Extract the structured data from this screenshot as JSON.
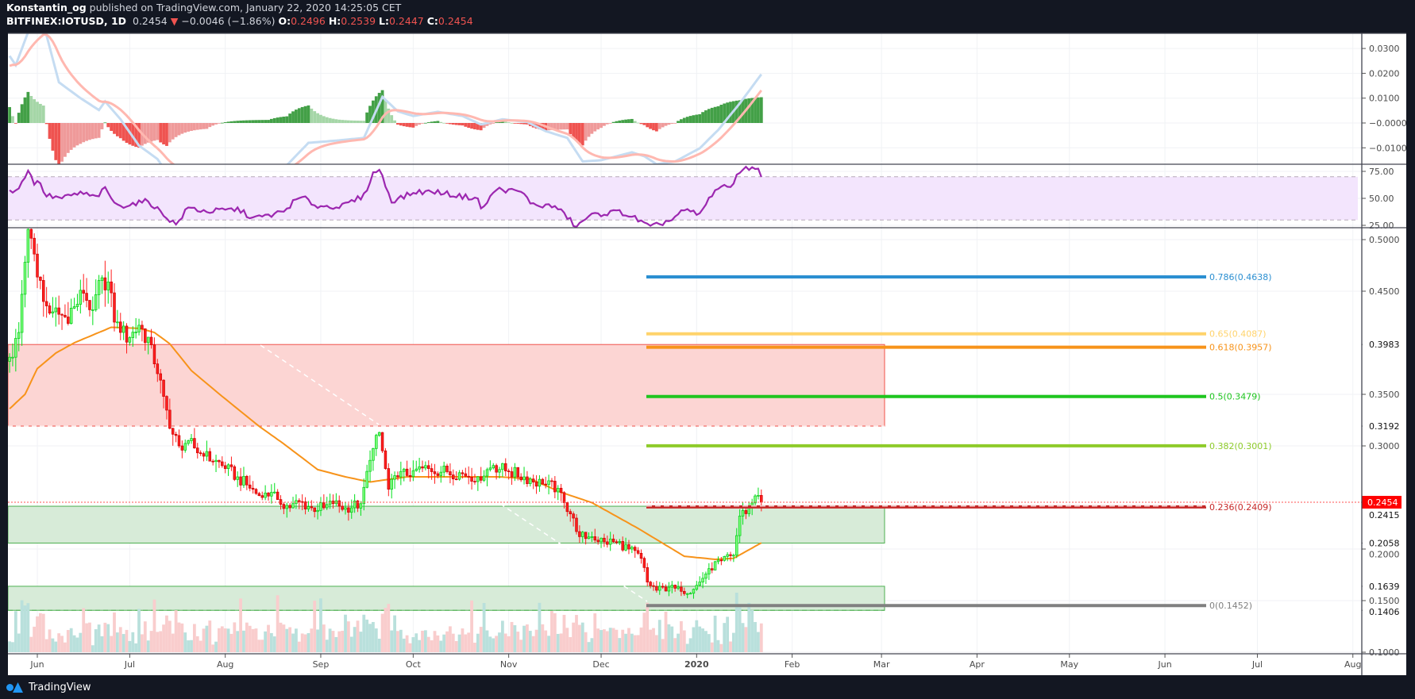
{
  "header": {
    "author": "Konstantin_og",
    "published": "published on TradingView.com, January 22, 2020 14:25:05 CET",
    "symbol": "BITFINEX:IOTUSD, 1D",
    "last": "0.2454",
    "change": "−0.0046 (−1.86%)",
    "o_label": "O:",
    "o": "0.2496",
    "h_label": "H:",
    "h": "0.2539",
    "l_label": "L:",
    "l": "0.2447",
    "c_label": "C:",
    "c": "0.2454"
  },
  "footer": {
    "brand": "TradingView"
  },
  "colors": {
    "up": "#00e01a",
    "down": "#ff1f1f",
    "ma": "#f7931a",
    "rsi": "#9c27b0",
    "macd": "#c5dcf2",
    "signal": "#ffb8b0",
    "price_badge": "#ff0000"
  },
  "chart_data": {
    "type": "candlestick",
    "x_unit": "days since 2019-06-01",
    "time_labels": [
      {
        "day": 0,
        "label": "Jun"
      },
      {
        "day": 30,
        "label": "Jul"
      },
      {
        "day": 61,
        "label": "Aug"
      },
      {
        "day": 92,
        "label": "Sep"
      },
      {
        "day": 122,
        "label": "Oct"
      },
      {
        "day": 153,
        "label": "Nov"
      },
      {
        "day": 183,
        "label": "Dec"
      },
      {
        "day": 214,
        "label": "2020",
        "bold": true
      },
      {
        "day": 245,
        "label": "Feb"
      },
      {
        "day": 274,
        "label": "Mar"
      },
      {
        "day": 305,
        "label": "Apr"
      },
      {
        "day": 335,
        "label": "May"
      },
      {
        "day": 366,
        "label": "Jun"
      },
      {
        "day": 396,
        "label": "Jul"
      },
      {
        "day": 427,
        "label": "Aug"
      }
    ],
    "price_axis": {
      "ylim": [
        0.1,
        0.5
      ],
      "ticks": [
        "0.5000",
        "0.4500",
        "0.3500",
        "0.3000",
        "0.2000",
        "0.1500",
        "0.1000"
      ],
      "marked": [
        "0.3983",
        "0.3192",
        "0.2415",
        "0.2058",
        "0.1639",
        "0.1406"
      ],
      "current": "0.2454"
    },
    "close_anchors": [
      [
        -9,
        0.386
      ],
      [
        -8,
        0.386
      ],
      [
        -6,
        0.41
      ],
      [
        -4,
        0.478
      ],
      [
        -3,
        0.51
      ],
      [
        -1,
        0.486
      ],
      [
        2,
        0.44
      ],
      [
        5,
        0.43
      ],
      [
        9,
        0.425
      ],
      [
        12,
        0.435
      ],
      [
        15,
        0.448
      ],
      [
        18,
        0.432
      ],
      [
        21,
        0.463
      ],
      [
        23,
        0.459
      ],
      [
        25,
        0.42
      ],
      [
        27,
        0.41
      ],
      [
        30,
        0.405
      ],
      [
        33,
        0.417
      ],
      [
        37,
        0.398
      ],
      [
        39,
        0.37
      ],
      [
        41,
        0.348
      ],
      [
        43,
        0.317
      ],
      [
        46,
        0.3
      ],
      [
        49,
        0.305
      ],
      [
        51,
        0.298
      ],
      [
        54,
        0.29
      ],
      [
        58,
        0.286
      ],
      [
        61,
        0.278
      ],
      [
        65,
        0.27
      ],
      [
        69,
        0.259
      ],
      [
        73,
        0.25
      ],
      [
        76,
        0.255
      ],
      [
        78,
        0.248
      ],
      [
        82,
        0.24
      ],
      [
        85,
        0.246
      ],
      [
        89,
        0.24
      ],
      [
        93,
        0.24
      ],
      [
        96,
        0.244
      ],
      [
        100,
        0.24
      ],
      [
        105,
        0.244
      ],
      [
        108,
        0.286
      ],
      [
        111,
        0.313
      ],
      [
        114,
        0.258
      ],
      [
        117,
        0.27
      ],
      [
        122,
        0.276
      ],
      [
        127,
        0.278
      ],
      [
        133,
        0.275
      ],
      [
        138,
        0.273
      ],
      [
        143,
        0.27
      ],
      [
        148,
        0.281
      ],
      [
        153,
        0.275
      ],
      [
        158,
        0.27
      ],
      [
        164,
        0.263
      ],
      [
        169,
        0.259
      ],
      [
        171,
        0.245
      ],
      [
        174,
        0.23
      ],
      [
        176,
        0.212
      ],
      [
        180,
        0.212
      ],
      [
        184,
        0.207
      ],
      [
        188,
        0.207
      ],
      [
        192,
        0.2
      ],
      [
        196,
        0.191
      ],
      [
        198,
        0.168
      ],
      [
        201,
        0.16
      ],
      [
        205,
        0.163
      ],
      [
        209,
        0.159
      ],
      [
        213,
        0.161
      ],
      [
        215,
        0.168
      ],
      [
        218,
        0.181
      ],
      [
        222,
        0.189
      ],
      [
        226,
        0.194
      ],
      [
        228,
        0.232
      ],
      [
        231,
        0.24
      ],
      [
        233,
        0.2515
      ],
      [
        235,
        0.2454
      ]
    ],
    "ma_anchors": [
      [
        -9,
        0.336
      ],
      [
        -4,
        0.35
      ],
      [
        0,
        0.375
      ],
      [
        6,
        0.39
      ],
      [
        12,
        0.4
      ],
      [
        24,
        0.415
      ],
      [
        33,
        0.414
      ],
      [
        38,
        0.41
      ],
      [
        43,
        0.399
      ],
      [
        50,
        0.373
      ],
      [
        60,
        0.348
      ],
      [
        72,
        0.319
      ],
      [
        80,
        0.302
      ],
      [
        91,
        0.277
      ],
      [
        100,
        0.27
      ],
      [
        108,
        0.265
      ],
      [
        120,
        0.27
      ],
      [
        150,
        0.27
      ],
      [
        160,
        0.268
      ],
      [
        170,
        0.255
      ],
      [
        180,
        0.245
      ],
      [
        195,
        0.22
      ],
      [
        210,
        0.193
      ],
      [
        220,
        0.19
      ],
      [
        226,
        0.191
      ],
      [
        235,
        0.206
      ]
    ],
    "macd": {
      "ticks": [
        "0.0300",
        "0.0200",
        "0.0100",
        "−0.0000",
        "−0.0100"
      ],
      "line_anchors": [
        [
          -9,
          0.027
        ],
        [
          -7,
          0.0233
        ],
        [
          -3,
          0.0366
        ],
        [
          2,
          0.04
        ],
        [
          7,
          0.0164
        ],
        [
          14,
          0.01
        ],
        [
          20,
          0.0052
        ],
        [
          22,
          0.0087
        ],
        [
          27,
          0.0015
        ],
        [
          33,
          -0.0091
        ],
        [
          39,
          -0.0145
        ],
        [
          42,
          -0.02
        ],
        [
          55,
          -0.024
        ],
        [
          75,
          -0.02
        ],
        [
          81,
          -0.017
        ],
        [
          88,
          -0.008
        ],
        [
          98,
          -0.007
        ],
        [
          106,
          -0.006
        ],
        [
          112,
          0.0105
        ],
        [
          117,
          0.0047
        ],
        [
          122,
          0.0028
        ],
        [
          130,
          0.0045
        ],
        [
          138,
          0.0028
        ],
        [
          144,
          -0.0006
        ],
        [
          151,
          0.0015
        ],
        [
          159,
          0.0004
        ],
        [
          165,
          -0.0033
        ],
        [
          172,
          -0.006
        ],
        [
          177,
          -0.0155
        ],
        [
          183,
          -0.015
        ],
        [
          193,
          -0.0118
        ],
        [
          197,
          -0.0134
        ],
        [
          201,
          -0.0166
        ],
        [
          207,
          -0.0155
        ],
        [
          215,
          -0.0102
        ],
        [
          221,
          -0.0028
        ],
        [
          228,
          0.0079
        ],
        [
          235,
          0.0196
        ]
      ]
    },
    "rsi": {
      "ticks": [
        "75.00",
        "50.00",
        "25.00"
      ],
      "bands": [
        30,
        70
      ],
      "anchors": [
        [
          -10,
          57.8
        ],
        [
          -7,
          56
        ],
        [
          -3,
          75.7
        ],
        [
          -1,
          64.7
        ],
        [
          0,
          67
        ],
        [
          3,
          52.5
        ],
        [
          8,
          50
        ],
        [
          14,
          55
        ],
        [
          19,
          51
        ],
        [
          22,
          58.6
        ],
        [
          26,
          42.6
        ],
        [
          31,
          45
        ],
        [
          36,
          47.5
        ],
        [
          41,
          35
        ],
        [
          45,
          25.5
        ],
        [
          49,
          41.4
        ],
        [
          55,
          37.7
        ],
        [
          65,
          40
        ],
        [
          70,
          31.6
        ],
        [
          75,
          34
        ],
        [
          80,
          37.7
        ],
        [
          83,
          46.3
        ],
        [
          86,
          51
        ],
        [
          91,
          42.6
        ],
        [
          99,
          42.6
        ],
        [
          106,
          52.5
        ],
        [
          109,
          73
        ],
        [
          111,
          77
        ],
        [
          115,
          47.5
        ],
        [
          123,
          56
        ],
        [
          130,
          56
        ],
        [
          136,
          52.5
        ],
        [
          143,
          50
        ],
        [
          144,
          39
        ],
        [
          149,
          58.6
        ],
        [
          157,
          56
        ],
        [
          161,
          43.9
        ],
        [
          168,
          42.6
        ],
        [
          172,
          32.9
        ],
        [
          175,
          23
        ],
        [
          178,
          31.6
        ],
        [
          181,
          35
        ],
        [
          189,
          37.7
        ],
        [
          194,
          31.6
        ],
        [
          199,
          23
        ],
        [
          206,
          30.4
        ],
        [
          210,
          39
        ],
        [
          215,
          35
        ],
        [
          220,
          58.6
        ],
        [
          225,
          61
        ],
        [
          228,
          75.7
        ],
        [
          233,
          79.4
        ],
        [
          235,
          72
        ]
      ]
    },
    "zones": [
      {
        "name": "resistance-zone",
        "top": 0.3983,
        "bottom": 0.3192,
        "fill": "#fcd5d3",
        "stroke": "#f0524a"
      },
      {
        "name": "support-zone",
        "top": 0.2415,
        "bottom": 0.2058,
        "fill": "#d7ebd8",
        "stroke": "#4caf50"
      },
      {
        "name": "lower-support-zone",
        "top": 0.1639,
        "bottom": 0.1406,
        "fill": "#d7ebd8",
        "stroke": "#4caf50"
      }
    ],
    "fib_levels": [
      {
        "level": "0.786",
        "price": "0.4638",
        "color": "#2b8fd1"
      },
      {
        "level": "0.65",
        "price": "0.4087",
        "color": "#ffd36b"
      },
      {
        "level": "0.618",
        "price": "0.3957",
        "color": "#f7931a"
      },
      {
        "level": "0.5",
        "price": "0.3479",
        "color": "#1fc51f"
      },
      {
        "level": "0.382",
        "price": "0.3001",
        "color": "#8ecb2a"
      },
      {
        "level": "0.236",
        "price": "0.2409",
        "color": "#c62828"
      },
      {
        "level": "0",
        "price": "0.1452",
        "color": "#808080"
      }
    ]
  }
}
